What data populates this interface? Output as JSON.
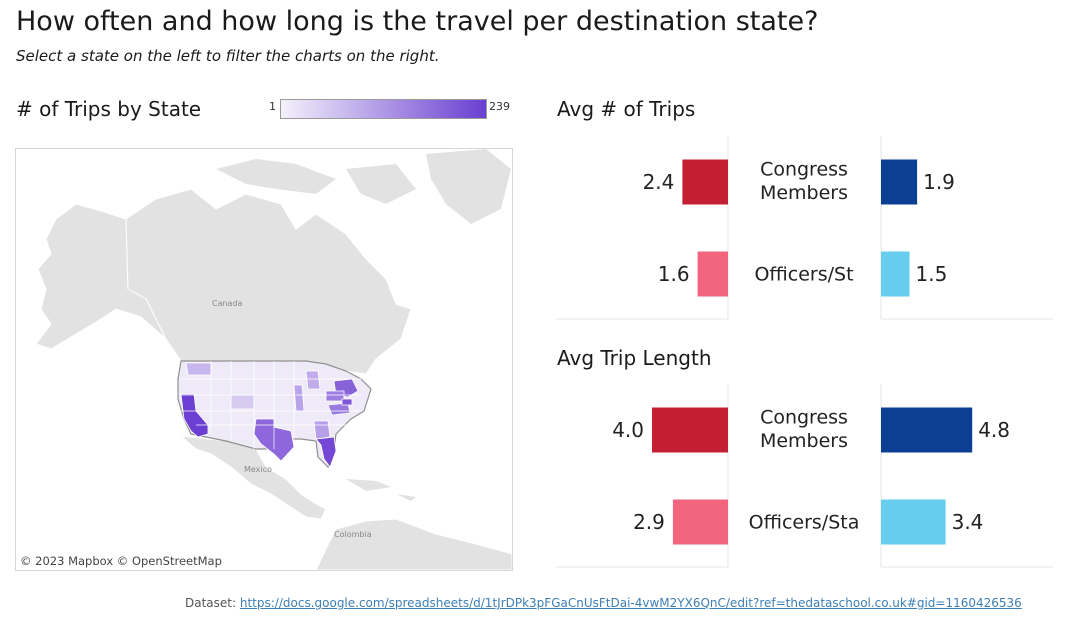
{
  "header": {
    "title": "How often and how long is the travel per destination state?",
    "subtitle": "Select a state on the left to filter the charts on the right."
  },
  "map": {
    "title": "# of Trips by State",
    "legend_min": "1",
    "legend_max": "239",
    "legend_colors": [
      "#f4f1fb",
      "#6a3fd1"
    ],
    "labels": {
      "canada": "Canada",
      "mexico": "Mexico",
      "colombia": "Colombia"
    },
    "attribution": "© 2023 Mapbox  © OpenStreetMap"
  },
  "colors": {
    "congress": "#c41e32",
    "congress_light": "#f2657e",
    "officers": "#0b3f94",
    "officers_light": "#66cdee"
  },
  "chart_data": [
    {
      "type": "bar",
      "title": "Avg # of Trips",
      "categories": [
        "Congress Members",
        "Officers/St"
      ],
      "series": [
        {
          "values": [
            2.4,
            1.6
          ]
        },
        {
          "values": [
            1.9,
            1.5
          ]
        }
      ],
      "value_labels": [
        [
          "2.4",
          "1.6"
        ],
        [
          "1.9",
          "1.5"
        ]
      ],
      "grid": true
    },
    {
      "type": "bar",
      "title": "Avg Trip Length",
      "categories": [
        "Congress Members",
        "Officers/Sta"
      ],
      "series": [
        {
          "values": [
            4.0,
            2.9
          ]
        },
        {
          "values": [
            4.8,
            3.4
          ]
        }
      ],
      "value_labels": [
        [
          "4.0",
          "2.9"
        ],
        [
          "4.8",
          "3.4"
        ]
      ],
      "grid": true
    }
  ],
  "footer": {
    "dataset_label": "Dataset:",
    "dataset_url": "https://docs.google.com/spreadsheets/d/1tJrDPk3pFGaCnUsFtDai-4vwM2YX6QnC/edit?ref=thedataschool.co.uk#gid=1160426536"
  }
}
